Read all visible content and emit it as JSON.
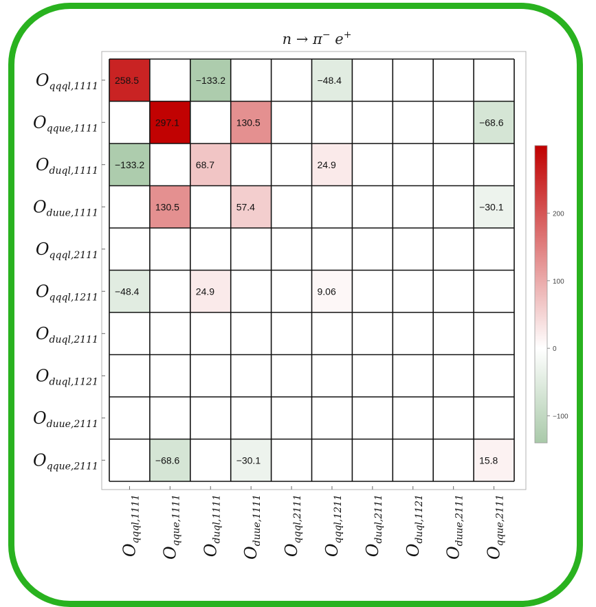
{
  "chart_data": {
    "type": "heatmap",
    "title": "n → π⁻ e⁺",
    "title_parts": {
      "main": "n → π",
      "sup1": "−",
      "mid": " e",
      "sup2": "+"
    },
    "labels": [
      {
        "main": "O",
        "sub": "qqql,1111"
      },
      {
        "main": "O",
        "sub": "qque,1111"
      },
      {
        "main": "O",
        "sub": "duql,1111"
      },
      {
        "main": "O",
        "sub": "duue,1111"
      },
      {
        "main": "O",
        "sub": "qqql,2111"
      },
      {
        "main": "O",
        "sub": "qqql,1211"
      },
      {
        "main": "O",
        "sub": "duql,2111"
      },
      {
        "main": "O",
        "sub": "duql,1121"
      },
      {
        "main": "O",
        "sub": "duue,2111"
      },
      {
        "main": "O",
        "sub": "qque,2111"
      }
    ],
    "cells": [
      {
        "row": 0,
        "col": 0,
        "value": 258.5,
        "label": "258.5"
      },
      {
        "row": 0,
        "col": 2,
        "value": -133.2,
        "label": "−133.2"
      },
      {
        "row": 0,
        "col": 5,
        "value": -48.4,
        "label": "−48.4"
      },
      {
        "row": 1,
        "col": 1,
        "value": 297.1,
        "label": "297.1"
      },
      {
        "row": 1,
        "col": 3,
        "value": 130.5,
        "label": "130.5"
      },
      {
        "row": 1,
        "col": 9,
        "value": -68.6,
        "label": "−68.6"
      },
      {
        "row": 2,
        "col": 0,
        "value": -133.2,
        "label": "−133.2"
      },
      {
        "row": 2,
        "col": 2,
        "value": 68.7,
        "label": "68.7"
      },
      {
        "row": 2,
        "col": 5,
        "value": 24.9,
        "label": "24.9"
      },
      {
        "row": 3,
        "col": 1,
        "value": 130.5,
        "label": "130.5"
      },
      {
        "row": 3,
        "col": 3,
        "value": 57.4,
        "label": "57.4"
      },
      {
        "row": 3,
        "col": 9,
        "value": -30.1,
        "label": "−30.1"
      },
      {
        "row": 5,
        "col": 0,
        "value": -48.4,
        "label": "−48.4"
      },
      {
        "row": 5,
        "col": 2,
        "value": 24.9,
        "label": "24.9"
      },
      {
        "row": 5,
        "col": 5,
        "value": 9.06,
        "label": "9.06"
      },
      {
        "row": 9,
        "col": 1,
        "value": -68.6,
        "label": "−68.6"
      },
      {
        "row": 9,
        "col": 3,
        "value": -30.1,
        "label": "−30.1"
      },
      {
        "row": 9,
        "col": 9,
        "value": 15.8,
        "label": "15.8"
      }
    ],
    "color_range": [
      -140,
      300
    ],
    "colorbar_ticks": [
      {
        "value": 200,
        "label": "200"
      },
      {
        "value": 100,
        "label": "100"
      },
      {
        "value": 0,
        "label": "0"
      },
      {
        "value": -100,
        "label": "−100"
      }
    ],
    "colors": {
      "max": "#c00000",
      "zero": "#ffffff",
      "min": "#a9c9a9",
      "frame": "#29b21f"
    }
  }
}
